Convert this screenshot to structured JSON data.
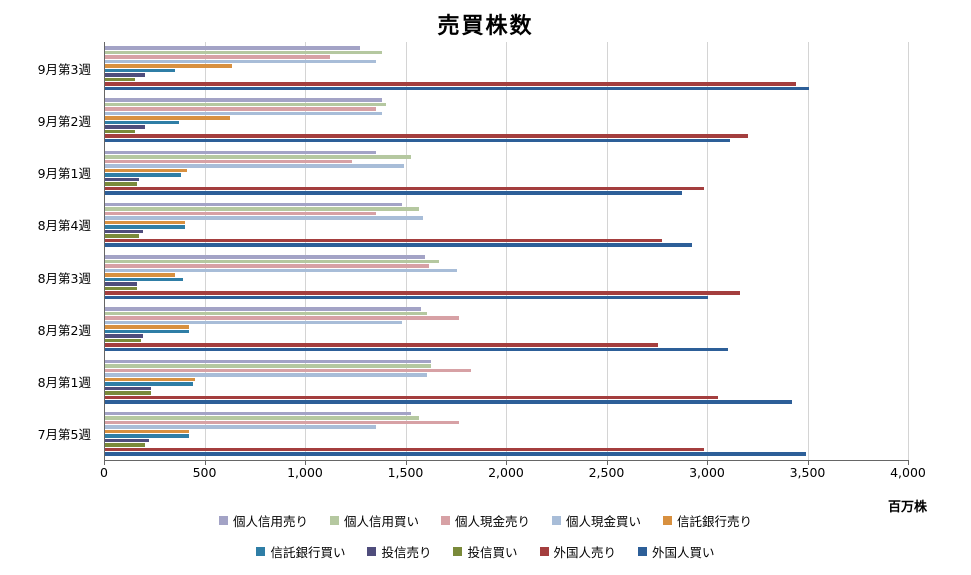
{
  "chart_data": {
    "type": "bar",
    "orientation": "horizontal",
    "title": "売買株数",
    "unit_label": "百万株",
    "xlabel": "",
    "ylabel": "",
    "xlim": [
      0,
      4000
    ],
    "grid": true,
    "legend_position": "bottom",
    "x_ticks": [
      "0",
      "500",
      "1,000",
      "1,500",
      "2,000",
      "2,500",
      "3,000",
      "3,500",
      "4,000"
    ],
    "categories": [
      "9月第3週",
      "9月第2週",
      "9月第1週",
      "8月第4週",
      "8月第3週",
      "8月第2週",
      "8月第1週",
      "7月第5週"
    ],
    "series": [
      {
        "name": "個人信用売り",
        "color": "#a3a3c6",
        "values": [
          1270,
          1380,
          1350,
          1480,
          1590,
          1570,
          1620,
          1520
        ]
      },
      {
        "name": "個人信用買い",
        "color": "#b5c8a0",
        "values": [
          1380,
          1400,
          1520,
          1560,
          1660,
          1600,
          1620,
          1560
        ]
      },
      {
        "name": "個人現金売り",
        "color": "#d7a1a5",
        "values": [
          1120,
          1350,
          1230,
          1350,
          1610,
          1760,
          1820,
          1760
        ]
      },
      {
        "name": "個人現金買い",
        "color": "#a8bdd8",
        "values": [
          1350,
          1380,
          1490,
          1580,
          1750,
          1480,
          1600,
          1350
        ]
      },
      {
        "name": "信託銀行売り",
        "color": "#d8903f",
        "values": [
          630,
          620,
          410,
          400,
          350,
          420,
          450,
          420
        ]
      },
      {
        "name": "信託銀行買い",
        "color": "#2f7ea6",
        "values": [
          350,
          370,
          380,
          400,
          390,
          420,
          440,
          420
        ]
      },
      {
        "name": "投信売り",
        "color": "#4f4d7c",
        "values": [
          200,
          200,
          170,
          190,
          160,
          190,
          230,
          220
        ]
      },
      {
        "name": "投信買い",
        "color": "#7a8a3a",
        "values": [
          150,
          150,
          160,
          170,
          160,
          180,
          230,
          200
        ]
      },
      {
        "name": "外国人売り",
        "color": "#a43e3e",
        "values": [
          3440,
          3200,
          2980,
          2770,
          3160,
          2750,
          3050,
          2980
        ]
      },
      {
        "name": "外国人買い",
        "color": "#2d5f98",
        "values": [
          3500,
          3110,
          2870,
          2920,
          3000,
          3100,
          3420,
          3490
        ]
      }
    ],
    "legend_row_size": 5
  }
}
